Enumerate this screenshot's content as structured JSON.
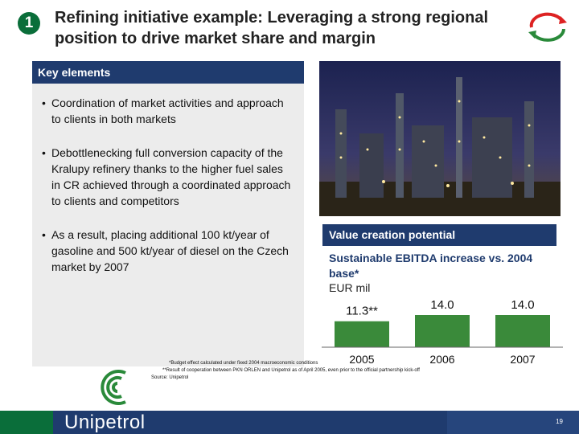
{
  "badge": "1",
  "title": "Refining initiative example: Leveraging a strong regional position to drive market share and margin",
  "left_panel": {
    "header": "Key elements",
    "bullets": [
      "Coordination of market activities and approach to clients in both markets",
      "Debottlenecking full conversion capacity of the Kralupy refinery thanks to the higher fuel sales in CR achieved through a coordinated approach to clients and competitors",
      "As a result, placing additional 100 kt/year of gasoline and 500 kt/year of diesel on the Czech market by 2007"
    ]
  },
  "right_panel": {
    "header": "Value creation potential",
    "chart_title": "Sustainable EBITDA increase vs. 2004 base*",
    "unit": "EUR mil"
  },
  "chart_data": {
    "type": "bar",
    "categories": [
      "2005",
      "2006",
      "2007"
    ],
    "values": [
      11.3,
      14.0,
      14.0
    ],
    "value_labels": [
      "11.3**",
      "14.0",
      "14.0"
    ],
    "title": "Sustainable EBITDA increase vs. 2004 base*",
    "ylabel": "EUR mil",
    "bar_color": "#3a8a3a"
  },
  "footnotes": [
    "*Budget effect calculated under fixed 2004 macroeconomic conditions",
    "**Result of cooperation between PKN ORLEN and Unipetrol as of April 2005, even prior to the official partnership kick-off",
    "Source: Unipetrol"
  ],
  "footer": {
    "brand": "Unipetrol",
    "page": "19"
  },
  "colors": {
    "navy": "#1f3b6e",
    "green": "#0a6e3a",
    "panel_bg": "#ececec"
  }
}
